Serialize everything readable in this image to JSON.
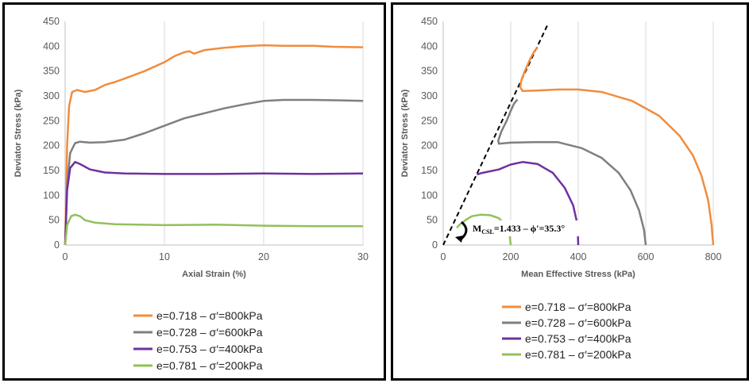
{
  "chart_data": [
    {
      "type": "line",
      "title": "",
      "xlabel": "Axial Strain (%)",
      "ylabel": "Deviator Stress (kPa)",
      "xlim": [
        0,
        30
      ],
      "ylim": [
        0,
        450
      ],
      "x_ticks": [
        0,
        10,
        20,
        30
      ],
      "y_ticks": [
        0,
        50,
        100,
        150,
        200,
        250,
        300,
        350,
        400,
        450
      ],
      "grid": "vertical",
      "legend_position": "bottom",
      "series": [
        {
          "name": "e=0.718 – σ′=800kPa",
          "color": "#F28C3C",
          "points": [
            [
              0,
              0
            ],
            [
              0.2,
              200
            ],
            [
              0.4,
              280
            ],
            [
              0.7,
              308
            ],
            [
              1.2,
              312
            ],
            [
              2,
              308
            ],
            [
              3,
              312
            ],
            [
              4,
              322
            ],
            [
              5,
              328
            ],
            [
              6,
              335
            ],
            [
              8,
              350
            ],
            [
              10,
              368
            ],
            [
              11,
              380
            ],
            [
              12,
              388
            ],
            [
              12.5,
              390
            ],
            [
              13,
              385
            ],
            [
              14,
              392
            ],
            [
              16,
              397
            ],
            [
              18,
              400
            ],
            [
              20,
              402
            ],
            [
              22,
              401
            ],
            [
              25,
              401
            ],
            [
              27,
              399
            ],
            [
              30,
              398
            ]
          ]
        },
        {
          "name": "e=0.728 – σ′=600kPa",
          "color": "#7F7F7F",
          "points": [
            [
              0,
              0
            ],
            [
              0.2,
              120
            ],
            [
              0.5,
              185
            ],
            [
              1,
              205
            ],
            [
              1.5,
              208
            ],
            [
              2.5,
              206
            ],
            [
              4,
              207
            ],
            [
              6,
              212
            ],
            [
              8,
              225
            ],
            [
              10,
              240
            ],
            [
              12,
              255
            ],
            [
              14,
              265
            ],
            [
              16,
              275
            ],
            [
              18,
              283
            ],
            [
              20,
              290
            ],
            [
              22,
              292
            ],
            [
              25,
              292
            ],
            [
              28,
              291
            ],
            [
              30,
              290
            ]
          ]
        },
        {
          "name": "e=0.753 – σ′=400kPa",
          "color": "#7030A0",
          "points": [
            [
              0,
              0
            ],
            [
              0.2,
              110
            ],
            [
              0.5,
              155
            ],
            [
              1,
              167
            ],
            [
              1.5,
              163
            ],
            [
              2.5,
              152
            ],
            [
              4,
              146
            ],
            [
              6,
              144
            ],
            [
              10,
              143
            ],
            [
              15,
              143
            ],
            [
              20,
              144
            ],
            [
              25,
              143
            ],
            [
              30,
              144
            ]
          ]
        },
        {
          "name": "e=0.781 – σ′=200kPa",
          "color": "#92C05A",
          "points": [
            [
              0,
              0
            ],
            [
              0.2,
              40
            ],
            [
              0.6,
              58
            ],
            [
              1,
              61
            ],
            [
              1.5,
              58
            ],
            [
              2,
              50
            ],
            [
              3,
              45
            ],
            [
              5,
              42
            ],
            [
              10,
              40
            ],
            [
              15,
              41
            ],
            [
              20,
              39
            ],
            [
              25,
              38
            ],
            [
              30,
              38
            ]
          ]
        }
      ]
    },
    {
      "type": "line",
      "title": "",
      "xlabel": "Mean Effective Stress (kPa)",
      "ylabel": "Deviator Stress (kPa)",
      "xlim": [
        0,
        800
      ],
      "ylim": [
        0,
        450
      ],
      "x_ticks": [
        0,
        200,
        400,
        600,
        800
      ],
      "y_ticks": [
        0,
        50,
        100,
        150,
        200,
        250,
        300,
        350,
        400,
        450
      ],
      "grid": "vertical",
      "legend_position": "bottom",
      "annotation": {
        "text_main": "M",
        "text_sub": "CSL",
        "text_rest": "=1.433 – ϕ′=35.3°"
      },
      "csl_line": {
        "slope": 1.433,
        "x_range": [
          0,
          310
        ]
      },
      "series": [
        {
          "name": "e=0.718 – σ′=800kPa",
          "color": "#F28C3C",
          "points": [
            [
              800,
              0
            ],
            [
              795,
              40
            ],
            [
              785,
              90
            ],
            [
              765,
              140
            ],
            [
              740,
              180
            ],
            [
              700,
              220
            ],
            [
              640,
              260
            ],
            [
              560,
              290
            ],
            [
              470,
              308
            ],
            [
              400,
              313
            ],
            [
              340,
              313
            ],
            [
              280,
              311
            ],
            [
              235,
              310
            ],
            [
              228,
              318
            ],
            [
              232,
              333
            ],
            [
              245,
              355
            ],
            [
              258,
              375
            ],
            [
              270,
              390
            ],
            [
              280,
              398
            ]
          ]
        },
        {
          "name": "e=0.728 – σ′=600kPa",
          "color": "#7F7F7F",
          "points": [
            [
              600,
              0
            ],
            [
              595,
              30
            ],
            [
              580,
              70
            ],
            [
              555,
              110
            ],
            [
              520,
              145
            ],
            [
              470,
              175
            ],
            [
              410,
              195
            ],
            [
              340,
              207
            ],
            [
              270,
              207
            ],
            [
              200,
              206
            ],
            [
              165,
              204
            ],
            [
              163,
              210
            ],
            [
              172,
              228
            ],
            [
              188,
              250
            ],
            [
              200,
              270
            ],
            [
              210,
              285
            ],
            [
              220,
              293
            ]
          ]
        },
        {
          "name": "e=0.753 – σ′=400kPa",
          "color": "#7030A0",
          "points": [
            [
              400,
              0
            ],
            [
              398,
              40
            ],
            [
              385,
              80
            ],
            [
              360,
              115
            ],
            [
              325,
              145
            ],
            [
              280,
              163
            ],
            [
              235,
              167
            ],
            [
              200,
              162
            ],
            [
              165,
              152
            ],
            [
              115,
              145
            ],
            [
              100,
              142
            ]
          ]
        },
        {
          "name": "e=0.781 – σ′=200kPa",
          "color": "#92C05A",
          "points": [
            [
              200,
              0
            ],
            [
              197,
              20
            ],
            [
              185,
              40
            ],
            [
              165,
              54
            ],
            [
              140,
              60
            ],
            [
              110,
              61
            ],
            [
              85,
              58
            ],
            [
              70,
              52
            ],
            [
              50,
              42
            ],
            [
              40,
              35
            ]
          ]
        }
      ]
    }
  ]
}
